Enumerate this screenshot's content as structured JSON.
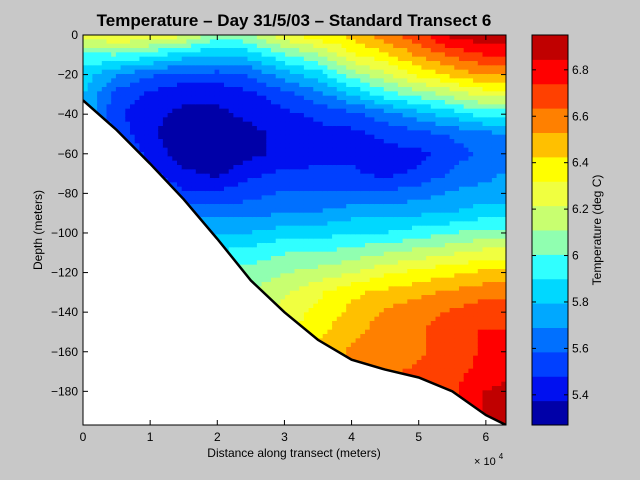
{
  "chart_data": {
    "type": "heatmap",
    "title": "Temperature – Day 31/5/03 – Standard Transect 6",
    "xlabel": "Distance along transect (meters)",
    "ylabel": "Depth (meters)",
    "x_multiplier_label": "× 10",
    "x_multiplier_exponent": "4",
    "xlim": [
      0,
      63000
    ],
    "ylim": [
      -197,
      0
    ],
    "x_ticks": [
      0,
      10000,
      20000,
      30000,
      40000,
      50000,
      60000
    ],
    "x_tick_labels": [
      "0",
      "1",
      "2",
      "3",
      "4",
      "5",
      "6"
    ],
    "y_ticks": [
      0,
      -20,
      -40,
      -60,
      -80,
      -100,
      -120,
      -140,
      -160,
      -180
    ],
    "y_tick_labels": [
      "0",
      "−20",
      "−40",
      "−60",
      "−80",
      "−100",
      "−120",
      "−140",
      "−160",
      "−180"
    ],
    "colorbar": {
      "label": "Temperature (deg C)",
      "range": [
        5.27,
        6.95
      ],
      "ticks": [
        5.4,
        5.6,
        5.8,
        6.0,
        6.2,
        6.4,
        6.6,
        6.8
      ],
      "tick_labels": [
        "5.4",
        "5.6",
        "5.8",
        "6",
        "6.2",
        "6.4",
        "6.6",
        "6.8"
      ],
      "colors": [
        "#0000a8",
        "#0010f0",
        "#0040ff",
        "#0070ff",
        "#00a8ff",
        "#00d8ff",
        "#30ffff",
        "#90ffb0",
        "#c8ff70",
        "#f0ff40",
        "#ffff00",
        "#ffc000",
        "#ff8000",
        "#ff4000",
        "#ff0000",
        "#c00000"
      ]
    },
    "bathymetry": {
      "x": [
        0,
        5000,
        10000,
        15000,
        20000,
        25000,
        30000,
        35000,
        40000,
        45000,
        50000,
        55000,
        60000,
        63000
      ],
      "depth": [
        -33,
        -48,
        -65,
        -83,
        -103,
        -124,
        -140,
        -154,
        -164,
        -169,
        -173,
        -180,
        -192,
        -197
      ]
    },
    "grid": false,
    "legend": "colorbar-right",
    "field_temperature": {
      "x": [
        0,
        5000,
        10000,
        15000,
        20000,
        25000,
        30000,
        35000,
        40000,
        45000,
        50000,
        55000,
        60000,
        63000
      ],
      "depth": [
        0,
        -10,
        -20,
        -30,
        -40,
        -50,
        -60,
        -70,
        -80,
        -90,
        -100,
        -110,
        -120,
        -130,
        -140,
        -150,
        -160,
        -170,
        -180,
        -190,
        -197
      ],
      "values": [
        [
          6.25,
          6.35,
          6.3,
          6.25,
          6.05,
          6.1,
          6.3,
          6.4,
          6.45,
          6.6,
          6.7,
          6.9,
          6.92,
          6.92
        ],
        [
          6.0,
          6.0,
          5.95,
          5.85,
          5.8,
          5.85,
          6.0,
          6.1,
          6.3,
          6.4,
          6.55,
          6.65,
          6.75,
          6.75
        ],
        [
          5.85,
          5.7,
          5.6,
          5.55,
          5.55,
          5.6,
          5.75,
          5.85,
          6.05,
          6.2,
          6.35,
          6.45,
          6.55,
          6.55
        ],
        [
          5.8,
          5.55,
          5.45,
          5.4,
          5.4,
          5.45,
          5.55,
          5.65,
          5.8,
          5.95,
          6.05,
          6.15,
          6.25,
          6.25
        ],
        [
          5.8,
          5.5,
          5.4,
          5.35,
          5.35,
          5.4,
          5.45,
          5.5,
          5.55,
          5.65,
          5.75,
          5.85,
          5.95,
          5.95
        ],
        [
          5.8,
          5.55,
          5.4,
          5.3,
          5.3,
          5.35,
          5.4,
          5.45,
          5.45,
          5.5,
          5.55,
          5.6,
          5.65,
          5.7
        ],
        [
          5.8,
          5.6,
          5.45,
          5.3,
          5.3,
          5.35,
          5.4,
          5.45,
          5.45,
          5.45,
          5.45,
          5.55,
          5.6,
          5.65
        ],
        [
          5.8,
          5.65,
          5.5,
          5.4,
          5.35,
          5.45,
          5.5,
          5.5,
          5.5,
          5.45,
          5.5,
          5.6,
          5.65,
          5.7
        ],
        [
          5.8,
          5.7,
          5.6,
          5.5,
          5.5,
          5.55,
          5.6,
          5.6,
          5.6,
          5.6,
          5.65,
          5.7,
          5.75,
          5.75
        ],
        [
          5.8,
          5.75,
          5.7,
          5.65,
          5.65,
          5.65,
          5.7,
          5.7,
          5.75,
          5.75,
          5.78,
          5.8,
          5.85,
          5.85
        ],
        [
          5.8,
          5.8,
          5.8,
          5.8,
          5.8,
          5.8,
          5.85,
          5.85,
          5.9,
          5.9,
          5.95,
          6.0,
          6.05,
          6.05
        ],
        [
          5.8,
          5.8,
          5.85,
          5.85,
          5.9,
          5.95,
          6.0,
          6.0,
          6.05,
          6.1,
          6.15,
          6.2,
          6.25,
          6.25
        ],
        [
          5.8,
          5.85,
          5.9,
          5.95,
          6.0,
          6.05,
          6.1,
          6.15,
          6.2,
          6.3,
          6.35,
          6.4,
          6.45,
          6.45
        ],
        [
          5.8,
          5.9,
          5.95,
          6.0,
          6.05,
          6.1,
          6.2,
          6.3,
          6.4,
          6.45,
          6.5,
          6.55,
          6.6,
          6.6
        ],
        [
          5.8,
          5.95,
          6.0,
          6.05,
          6.1,
          6.15,
          6.25,
          6.35,
          6.45,
          6.55,
          6.6,
          6.65,
          6.7,
          6.7
        ],
        [
          5.8,
          6.0,
          6.05,
          6.1,
          6.15,
          6.2,
          6.3,
          6.4,
          6.5,
          6.58,
          6.62,
          6.7,
          6.75,
          6.75
        ],
        [
          5.8,
          6.0,
          6.05,
          6.1,
          6.15,
          6.2,
          6.35,
          6.45,
          6.55,
          6.6,
          6.62,
          6.7,
          6.75,
          6.75
        ],
        [
          5.8,
          6.0,
          6.05,
          6.1,
          6.15,
          6.2,
          6.35,
          6.45,
          6.55,
          6.62,
          6.65,
          6.7,
          6.78,
          6.8
        ],
        [
          5.8,
          6.0,
          6.05,
          6.1,
          6.15,
          6.2,
          6.35,
          6.45,
          6.55,
          6.62,
          6.65,
          6.72,
          6.85,
          6.88
        ],
        [
          5.8,
          6.0,
          6.05,
          6.1,
          6.15,
          6.2,
          6.35,
          6.45,
          6.55,
          6.62,
          6.65,
          6.75,
          6.85,
          6.9
        ],
        [
          5.8,
          6.0,
          6.05,
          6.1,
          6.15,
          6.2,
          6.35,
          6.45,
          6.55,
          6.62,
          6.65,
          6.75,
          6.85,
          6.9
        ]
      ]
    }
  }
}
